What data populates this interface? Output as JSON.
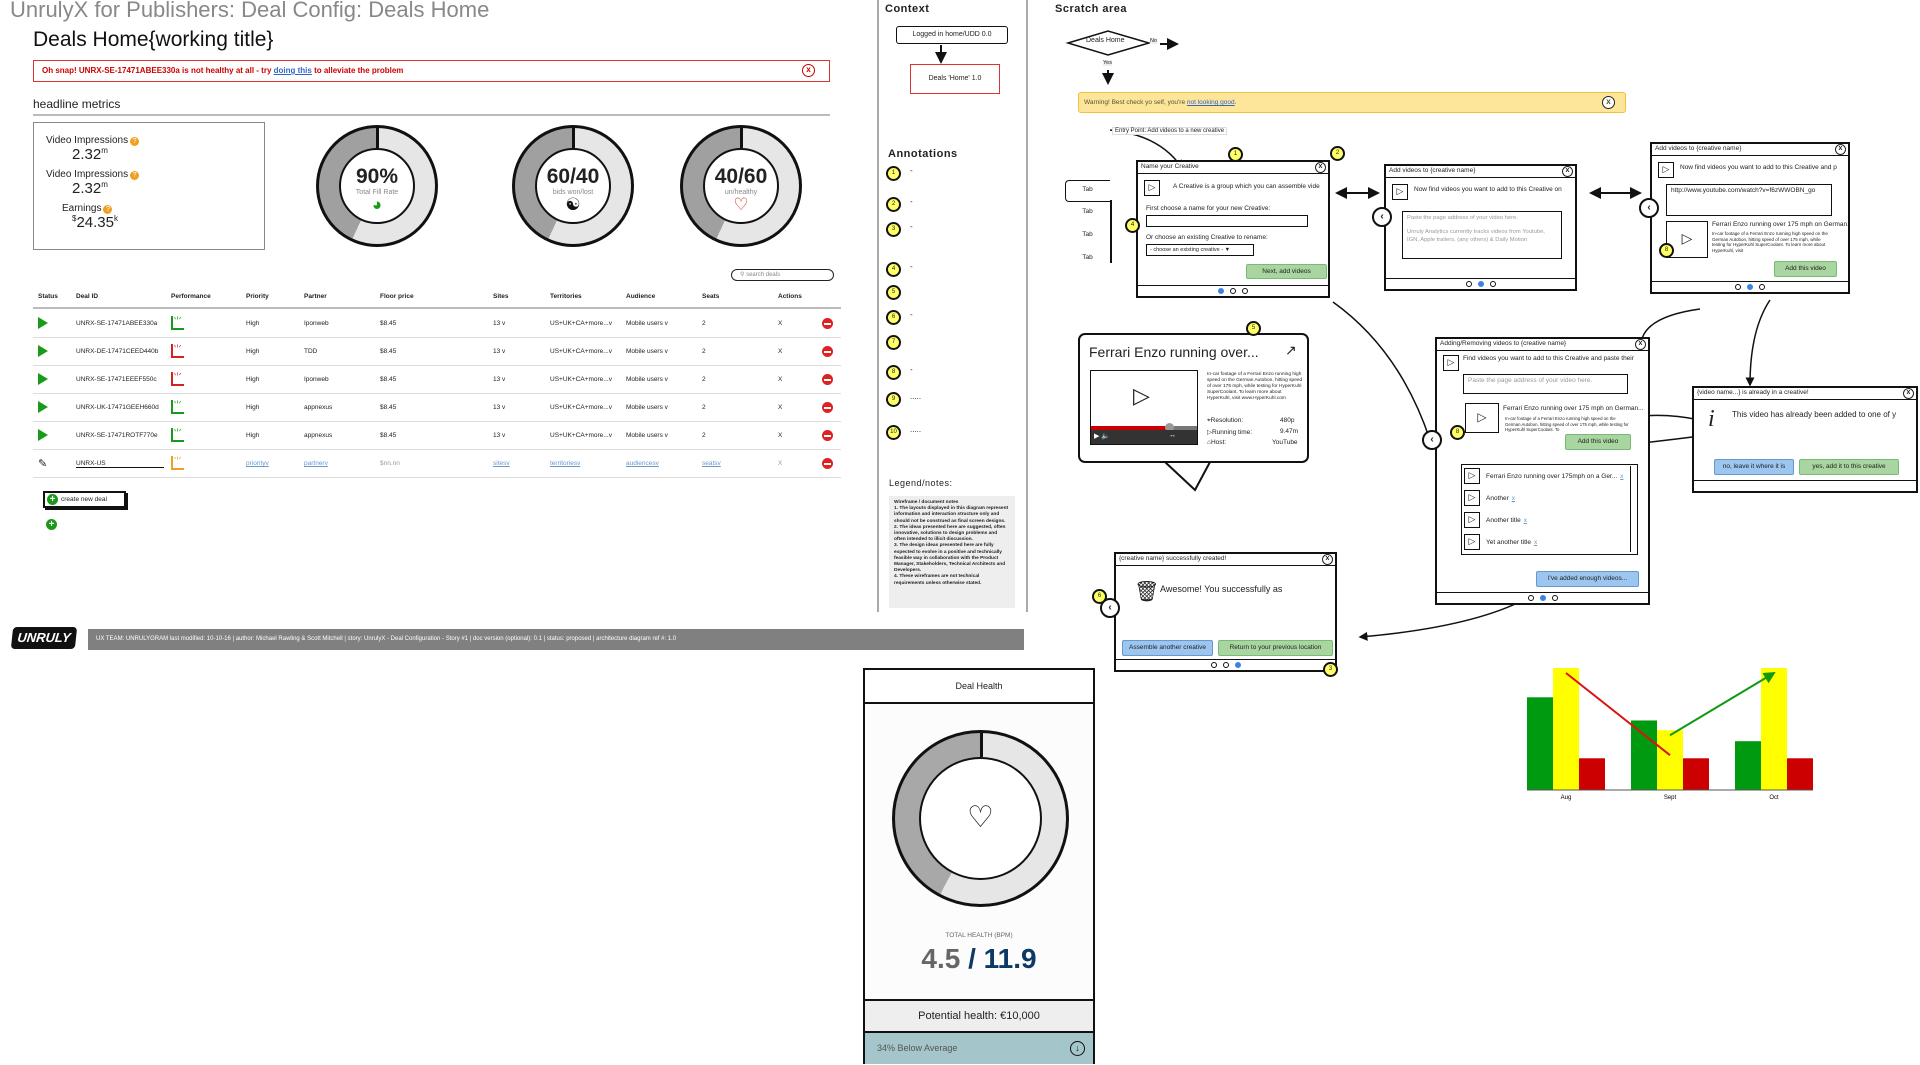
{
  "app_title": "UnrulyX for Publishers: Deal Config: Deals Home",
  "page_title": "Deals Home{working title}",
  "error_banner": {
    "prefix": "Oh snap! UNRX-SE-17471ABEE330a is not healthy at all - try ",
    "link": "doing this",
    "suffix": " to alleviate the problem",
    "close_icon": "close-circle-icon",
    "color": "#dd3333"
  },
  "headline_metrics": {
    "title": "headline metrics",
    "metrics": [
      {
        "label": "Video Impressions",
        "value": "2.32",
        "unit": "m",
        "prefix": ""
      },
      {
        "label": "Video Impressions",
        "value": "2.32",
        "unit": "m",
        "prefix": ""
      },
      {
        "label": "Earnings",
        "value": "24.35",
        "unit": "k",
        "prefix": "$"
      }
    ],
    "help_icon": "?",
    "donuts": [
      {
        "value": "90%",
        "label": "Total Fill Rate",
        "icon": "gauge-icon"
      },
      {
        "value": "60/40",
        "label": "bids won/lost",
        "icon": "yin-yang-icon"
      },
      {
        "value": "40/60",
        "label": "un/healthy",
        "icon": "heart-icon"
      }
    ]
  },
  "search": {
    "placeholder": "search deals"
  },
  "table": {
    "columns": [
      "Status",
      "Deal ID",
      "Performance",
      "Priority",
      "Partner",
      "Floor price",
      "Sites",
      "Territories",
      "Audience",
      "Seats",
      "Actions"
    ],
    "rows": [
      {
        "deal_id": "UNRX-SE-17471ABEE330a",
        "perf": "good",
        "priority": "High",
        "partner": "Iponweb",
        "floor": "$8.45",
        "sites": "13 v",
        "territories": "US+UK+CA+more...v",
        "audience": "Mobile users v",
        "seats": "2",
        "action": "X"
      },
      {
        "deal_id": "UNRX-DE-17471CEED440b",
        "perf": "bad",
        "priority": "High",
        "partner": "TDD",
        "floor": "$8.45",
        "sites": "13 v",
        "territories": "US+UK+CA+more...v",
        "audience": "Mobile users v",
        "seats": "2",
        "action": "X"
      },
      {
        "deal_id": "UNRX-SE-17471EEEF550c",
        "perf": "bad",
        "priority": "High",
        "partner": "Iponweb",
        "floor": "$8.45",
        "sites": "13 v",
        "territories": "US+UK+CA+more...v",
        "audience": "Mobile users v",
        "seats": "2",
        "action": "X"
      },
      {
        "deal_id": "UNRX-UK-17471GEEH660d",
        "perf": "good",
        "priority": "High",
        "partner": "appnexus",
        "floor": "$8.45",
        "sites": "13 v",
        "territories": "US+UK+CA+more...v",
        "audience": "Mobile users v",
        "seats": "2",
        "action": "X"
      },
      {
        "deal_id": "UNRX-SE-17471ROTF770e",
        "perf": "good",
        "priority": "High",
        "partner": "appnexus",
        "floor": "$8.45",
        "sites": "13 v",
        "territories": "US+UK+CA+more...v",
        "audience": "Mobile users v",
        "seats": "2",
        "action": "X"
      }
    ],
    "new_row": {
      "deal_id": "UNRX-US",
      "priority": "priorityv",
      "partner": "partnerv",
      "floor": "$nn.nn",
      "sites": "sitesv",
      "territories": "territoriesv",
      "audience": "audiencesv",
      "seats": "seatsv",
      "action": "X"
    },
    "colors": {
      "good": "#1a9a1a",
      "bad": "#d22222",
      "new": "#f0a020"
    }
  },
  "create_deal_label": "create new deal",
  "footer": {
    "logo": "UNRULY",
    "text": "UX TEAM: UNRULYGRAM     last modified: 10-10-16 |  author: Michael Rawling & Scott Mitchell | story: UnrulyX - Deal Configuration - Story #1  | doc version (optional): 0.1 | status: proposed | architecture diagram ref #: 1.0"
  },
  "context": {
    "title": "Context",
    "from": "Logged in home/UDD 0.0",
    "current": "Deals 'Home' 1.0"
  },
  "annotations": {
    "title": "Annotations",
    "items": [
      {
        "n": "1",
        "text": "-"
      },
      {
        "n": "2",
        "text": "-"
      },
      {
        "n": "3",
        "text": "-"
      },
      {
        "n": "4",
        "text": "-"
      },
      {
        "n": "5",
        "text": ""
      },
      {
        "n": "6",
        "text": "-"
      },
      {
        "n": "7",
        "text": ""
      },
      {
        "n": "8",
        "text": "-"
      },
      {
        "n": "9",
        "text": "....."
      },
      {
        "n": "10",
        "text": "....."
      }
    ]
  },
  "legend": {
    "title": "Legend/notes:",
    "text": "Wireframe / document notes\n1. The layouts displayed in this diagram represent information and interaction structure only and should not be construed as final screen designs.\n2. The ideas presented here are suggested, often innovative, solutions to design problems and often intended to illicit discussion.\n3. The design ideas presented here are fully expected to evolve in a positive and technically feasible way in collaboration with the Product Manager, Stakeholders, Technical Architects and Developers.\n4. These wireframes are not technical requirements unless otherwise stated."
  },
  "scratch": {
    "title": "Scratch area",
    "decision": {
      "label": "Deals Home",
      "no": "No",
      "yes": "Yes"
    },
    "warning": {
      "prefix": "Warning! Best check yo self, you're ",
      "link": "not looking good",
      "suffix": "."
    },
    "entry_point": "Entry Point: Add videos to a new creative",
    "tabs": [
      "Tab",
      "Tab",
      "Tab",
      "Tab"
    ],
    "dialog_name": {
      "title": "Name your Creative",
      "intro": "A Creative is a group which you can assemble vide",
      "name_label": "First choose a name for your new Creative:",
      "existing_label": "Or choose an existing Creative to rename:",
      "select_value": "- choose an existing creative -",
      "next": "Next, add videos"
    },
    "dialog_add": {
      "title": "Add videos to {creative name}",
      "intro": "Now find videos you want to add to this Creative on",
      "placeholder": "Paste the page address of your video here.",
      "hint": "Unruly Analytics currently tracks videos from Youtube, IGN, Apple trailers, (any others) & Daily Motion"
    },
    "dialog_add2": {
      "title": "Add videos to {creative name}",
      "intro": "Now find videos you want to add to this Creative and p",
      "url": "http://www.youtube.com/watch?v=f6zWWOBN_go",
      "video_title": "Ferrari Enzo running over 175 mph on German...",
      "video_desc": "In-car footage of a Ferrari Enzo running high speed on the German Autobon, hitting speed of over 175 mph, while testing for HyperKuhl SuperCoolant. To learn more about HyperKuhl, visit",
      "add": "Add this video"
    },
    "video_card": {
      "title": "Ferrari Enzo running over...",
      "desc": "In-car footage of a Ferrari Enzo running high speed on the German Autobon, hitting speed of over 175 mph, while testing for HyperKuhl SuperCoolant. To learn more about HyperKuhl, visit www.HyperKuhl.com",
      "resolution_label": "Resolution:",
      "resolution": "480p",
      "running_label": "Running time:",
      "running": "9.47m",
      "host_label": "Host:",
      "host": "YouTube",
      "progress": 0.75
    },
    "dialog_manage": {
      "title": "Adding/Removing videos to {creative name}",
      "intro": "Find videos you want to add to this Creative and paste their",
      "placeholder": "Paste the page address of your video here.",
      "video_title": "Ferrari Enzo running over 175 mph on German...",
      "video_desc": "In-car footage of a Ferrari Enzo running high speed on the German Autobon, hitting speed of over 175 mph, while testing for HyperKuhl SuperCoolant. To",
      "add": "Add this video",
      "list": [
        "Ferrari Enzo running over 175mph on a Ger...",
        "Another",
        "Another title",
        "Yet another title"
      ],
      "remove": "x",
      "done": "I've added enough videos..."
    },
    "dialog_exists": {
      "title": "{video name...} is already in a creative!",
      "message": "This video has already been added to one of y",
      "no": "no, leave it where it is",
      "yes": "yes, add it to this creative"
    },
    "dialog_success": {
      "title": "{creative name} successfully created!",
      "message": "Awesome! You successfully as",
      "another": "Assemble another creative",
      "return": "Return to your previous location"
    }
  },
  "deal_health": {
    "title": "Deal Health",
    "label": "TOTAL HEALTH (BPM)",
    "current": "4.5",
    "separator": " / ",
    "total": "11.9",
    "potential": "Potential health: €10,000",
    "below": "34% Below Average",
    "colors": {
      "current": "#666666",
      "total": "#0b3a66",
      "below_bg": "#a4c5ca"
    }
  },
  "chart_data": {
    "type": "bar",
    "categories": [
      "Aug",
      "Sept",
      "Oct"
    ],
    "series": [
      {
        "values": [
          76,
          57,
          40
        ],
        "color": "#009a10"
      },
      {
        "values": [
          100,
          49,
          100
        ],
        "color": "#ffff00"
      },
      {
        "values": [
          26,
          26,
          26
        ],
        "color": "#cc0000"
      }
    ],
    "trend": [
      {
        "from": "Aug",
        "to": "Sept",
        "color": "#dd1111"
      },
      {
        "from": "Sept",
        "to": "Oct",
        "color": "#119911"
      }
    ],
    "ylim": [
      0,
      100
    ],
    "grid": false
  }
}
